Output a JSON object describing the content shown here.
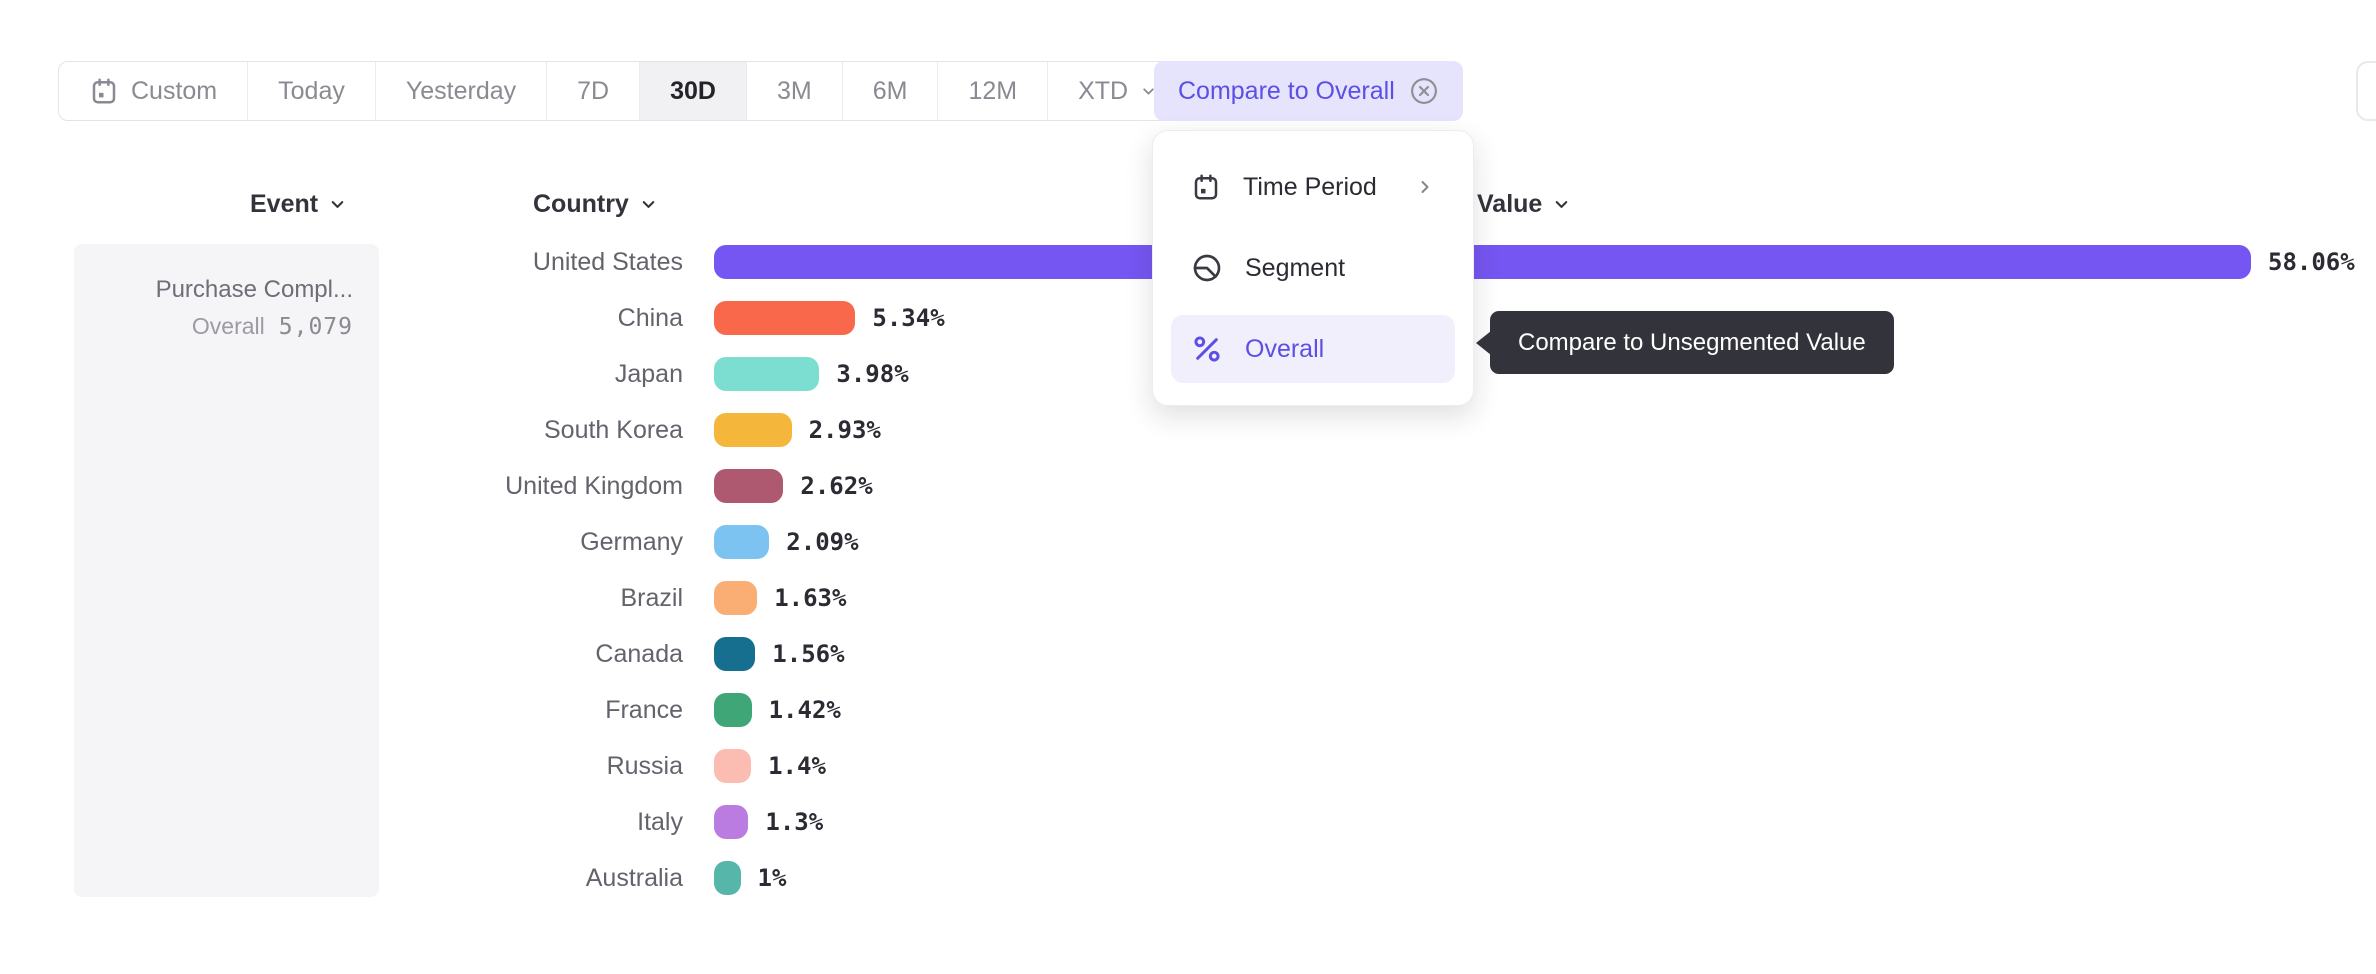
{
  "theme": {
    "accent": "#5B4FE6",
    "chip_bg": "#E6E3FC",
    "menu_active_bg": "#F1EFFB",
    "tooltip_bg": "#33333B",
    "selected_range_bg": "#F1F1F3"
  },
  "toolbar": {
    "buttons": [
      {
        "label": "Custom",
        "icon": "calendar-icon",
        "selected": false
      },
      {
        "label": "Today",
        "selected": false
      },
      {
        "label": "Yesterday",
        "selected": false
      },
      {
        "label": "7D",
        "selected": false
      },
      {
        "label": "30D",
        "selected": true
      },
      {
        "label": "3M",
        "selected": false
      },
      {
        "label": "6M",
        "selected": false
      },
      {
        "label": "12M",
        "selected": false
      },
      {
        "label": "XTD",
        "chevron": true,
        "selected": false
      }
    ],
    "compare_chip": "Compare to Overall"
  },
  "menu": {
    "items": [
      {
        "label": "Time Period",
        "icon": "calendar-icon",
        "submenu": true,
        "active": false
      },
      {
        "label": "Segment",
        "icon": "segment-icon",
        "submenu": false,
        "active": false
      },
      {
        "label": "Overall",
        "icon": "percent-icon",
        "submenu": false,
        "active": true
      }
    ]
  },
  "tooltip": {
    "text": "Compare to Unsegmented Value"
  },
  "columns": {
    "event": "Event",
    "country": "Country",
    "value": "Value"
  },
  "event_panel": {
    "name": "Purchase Compl...",
    "overall_label": "Overall",
    "overall_value": "5,079"
  },
  "chart_data": {
    "type": "bar",
    "orientation": "horizontal",
    "title": "",
    "xlabel": "Country",
    "ylabel": "Value",
    "unit": "%",
    "xlim": [
      0,
      60
    ],
    "categories": [
      "United States",
      "China",
      "Japan",
      "South Korea",
      "United Kingdom",
      "Germany",
      "Brazil",
      "Canada",
      "France",
      "Russia",
      "Italy",
      "Australia"
    ],
    "values": [
      58.06,
      5.34,
      3.98,
      2.93,
      2.62,
      2.09,
      1.63,
      1.56,
      1.42,
      1.4,
      1.3,
      1
    ],
    "value_labels": [
      "58.06%",
      "5.34%",
      "3.98%",
      "2.93%",
      "2.62%",
      "2.09%",
      "1.63%",
      "1.56%",
      "1.42%",
      "1.4%",
      "1.3%",
      "1%"
    ],
    "colors": [
      "#7656F2",
      "#F9684B",
      "#7CDED0",
      "#F4B73C",
      "#AE5970",
      "#7DC3F1",
      "#FAAE74",
      "#166F8F",
      "#3FA677",
      "#FBBCB1",
      "#BA7CE0",
      "#57B6AA"
    ]
  }
}
